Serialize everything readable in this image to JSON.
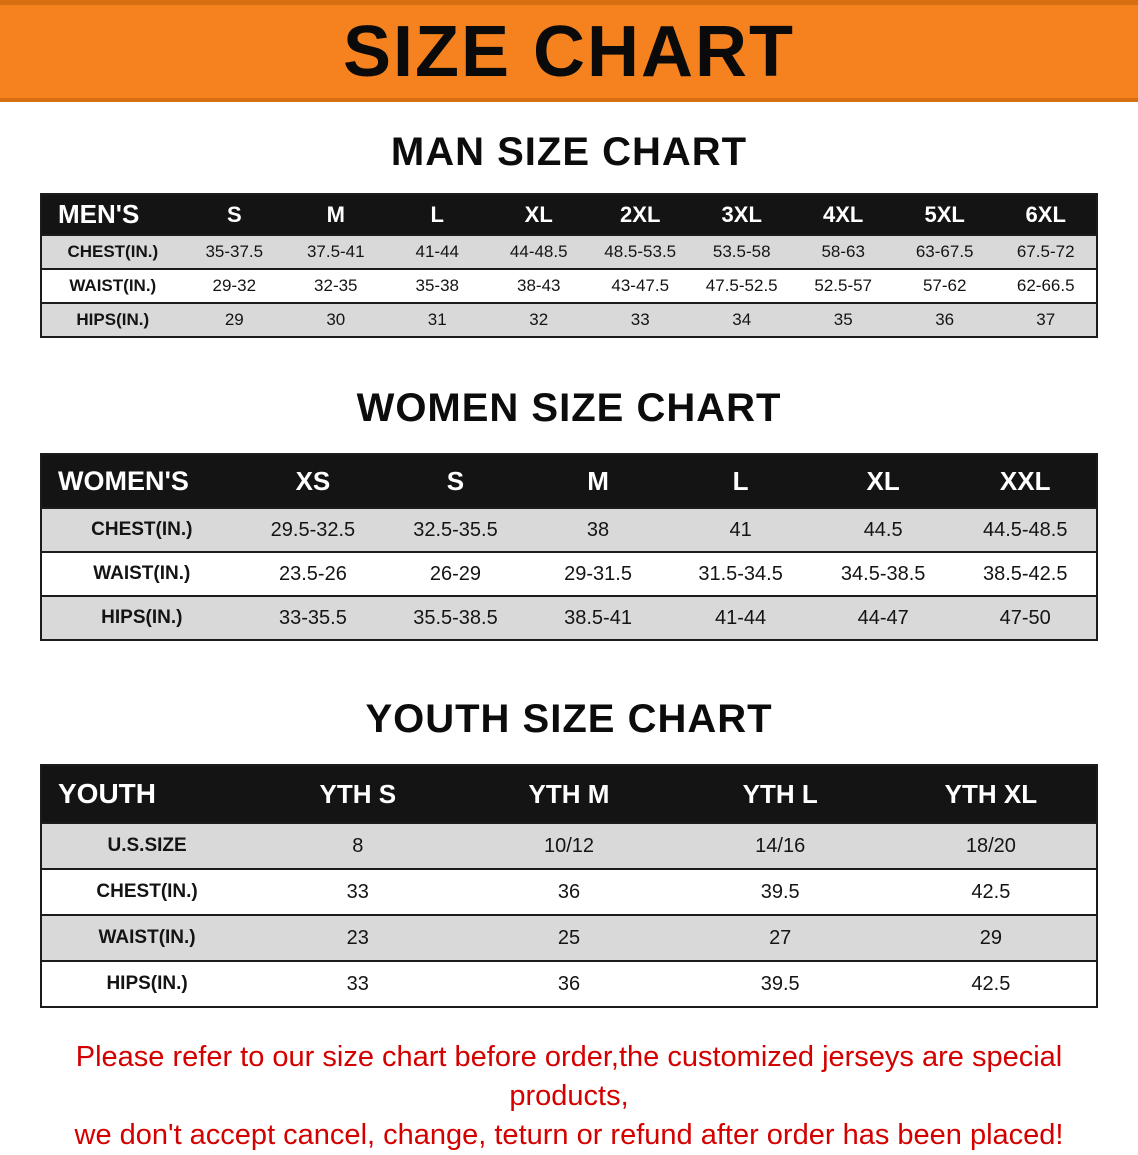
{
  "banner": {
    "title": "SIZE CHART"
  },
  "sections": [
    {
      "id": "men",
      "heading": "MAN SIZE CHART",
      "table": {
        "header": [
          "MEN'S",
          "S",
          "M",
          "L",
          "XL",
          "2XL",
          "3XL",
          "4XL",
          "5XL",
          "6XL"
        ],
        "rows": [
          [
            "CHEST(IN.)",
            "35-37.5",
            "37.5-41",
            "41-44",
            "44-48.5",
            "48.5-53.5",
            "53.5-58",
            "58-63",
            "63-67.5",
            "67.5-72"
          ],
          [
            "WAIST(IN.)",
            "29-32",
            "32-35",
            "35-38",
            "38-43",
            "43-47.5",
            "47.5-52.5",
            "52.5-57",
            "57-62",
            "62-66.5"
          ],
          [
            "HIPS(IN.)",
            "29",
            "30",
            "31",
            "32",
            "33",
            "34",
            "35",
            "36",
            "37"
          ]
        ]
      }
    },
    {
      "id": "women",
      "heading": "WOMEN SIZE CHART",
      "table": {
        "header": [
          "WOMEN'S",
          "XS",
          "S",
          "M",
          "L",
          "XL",
          "XXL"
        ],
        "rows": [
          [
            "CHEST(IN.)",
            "29.5-32.5",
            "32.5-35.5",
            "38",
            "41",
            "44.5",
            "44.5-48.5"
          ],
          [
            "WAIST(IN.)",
            "23.5-26",
            "26-29",
            "29-31.5",
            "31.5-34.5",
            "34.5-38.5",
            "38.5-42.5"
          ],
          [
            "HIPS(IN.)",
            "33-35.5",
            "35.5-38.5",
            "38.5-41",
            "41-44",
            "44-47",
            "47-50"
          ]
        ]
      }
    },
    {
      "id": "youth",
      "heading": "YOUTH SIZE CHART",
      "table": {
        "header": [
          "YOUTH",
          "YTH S",
          "YTH M",
          "YTH L",
          "YTH XL"
        ],
        "rows": [
          [
            "U.S.SIZE",
            "8",
            "10/12",
            "14/16",
            "18/20"
          ],
          [
            "CHEST(IN.)",
            "33",
            "36",
            "39.5",
            "42.5"
          ],
          [
            "WAIST(IN.)",
            "23",
            "25",
            "27",
            "29"
          ],
          [
            "HIPS(IN.)",
            "33",
            "36",
            "39.5",
            "42.5"
          ]
        ]
      }
    }
  ],
  "footer": {
    "lines": [
      "Please refer to our size chart before order,the customized jerseys are special products,",
      "we don't accept cancel, change, teturn or refund after order has been placed!"
    ]
  },
  "colors": {
    "banner_bg": "#f5821f",
    "banner_edge": "#d86e12",
    "header_bg": "#141414",
    "stripe": "#d9d9d9",
    "footer_text": "#d40000"
  }
}
